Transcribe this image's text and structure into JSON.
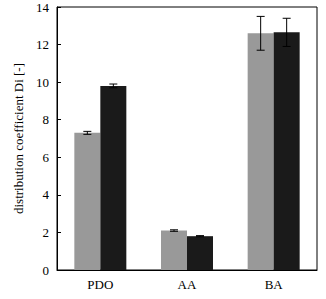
{
  "chart_data": {
    "type": "bar",
    "y_label": "distribution coefficient Di [-]",
    "categories": [
      "PDO",
      "AA",
      "BA"
    ],
    "series": [
      {
        "color": "#999999",
        "values": [
          7.3,
          2.1,
          12.6
        ],
        "errors": [
          0.08,
          0.04,
          0.9
        ]
      },
      {
        "color": "#1a1a1a",
        "values": [
          9.8,
          1.8,
          12.65
        ],
        "errors": [
          0.1,
          0.03,
          0.75
        ]
      }
    ],
    "ylim": [
      0,
      14
    ],
    "yticks": [
      0,
      2,
      4,
      6,
      8,
      10,
      12,
      14
    ],
    "grid": false
  }
}
